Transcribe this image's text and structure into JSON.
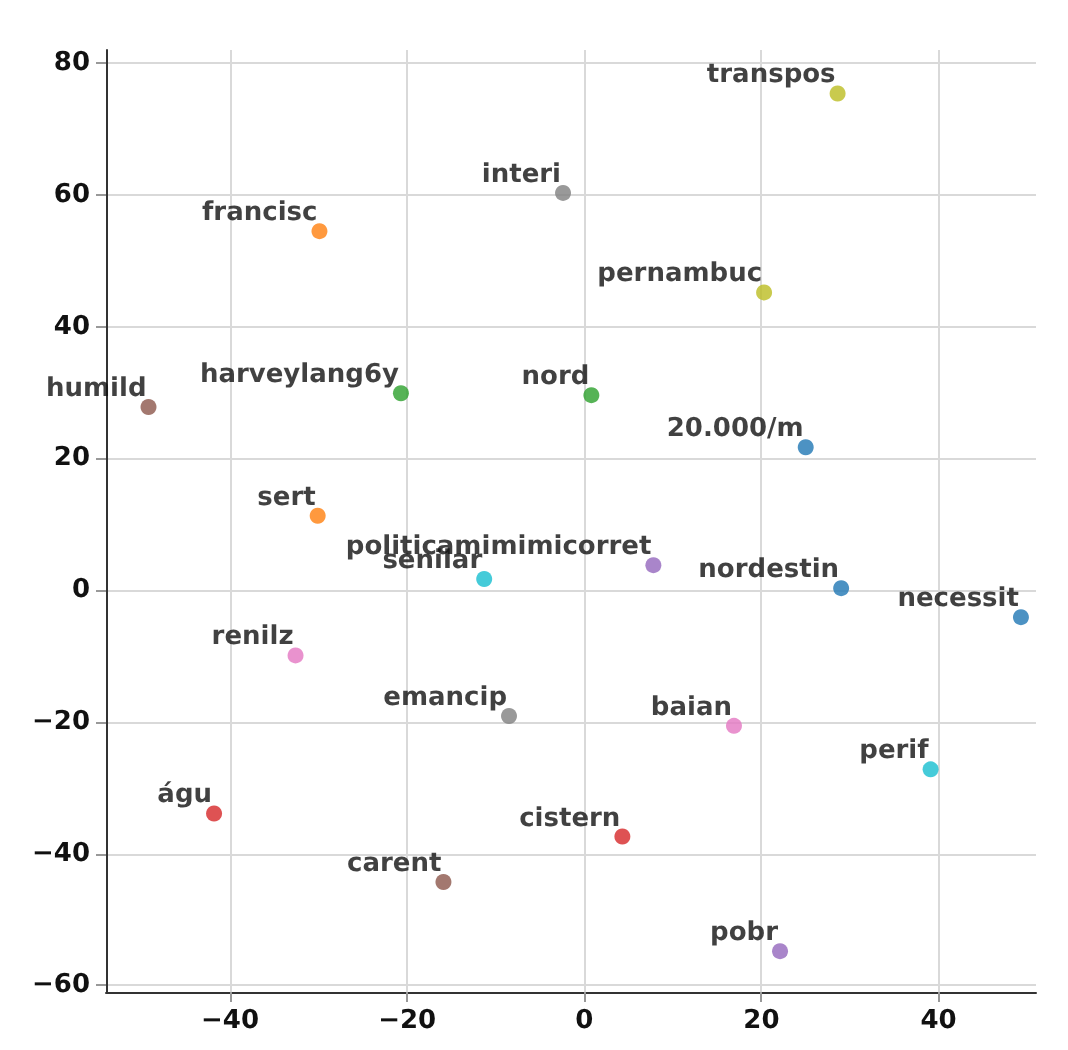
{
  "chart_data": {
    "type": "scatter",
    "x": [
      28.6,
      -2.4,
      -29.9,
      20.3,
      -49.2,
      -20.7,
      0.8,
      25.0,
      -30.1,
      7.8,
      -11.3,
      29.0,
      49.3,
      -32.6,
      -8.5,
      16.9,
      39.1,
      -41.8,
      4.3,
      -15.9,
      22.1
    ],
    "values": [
      75.4,
      60.3,
      54.5,
      45.2,
      27.8,
      29.9,
      29.6,
      21.7,
      11.3,
      3.8,
      1.7,
      0.3,
      -4.1,
      -9.9,
      -19.1,
      -20.6,
      -27.2,
      -33.9,
      -37.4,
      -44.3,
      -54.8
    ],
    "colors": [
      "#bcbd22",
      "#7f7f7f",
      "#ff7f0e",
      "#bcbd22",
      "#8c564b",
      "#2ca02c",
      "#2ca02c",
      "#1f77b4",
      "#ff7f0e",
      "#9467bd",
      "#17becf",
      "#1f77b4",
      "#1f77b4",
      "#e377c2",
      "#7f7f7f",
      "#e377c2",
      "#17becf",
      "#d62728",
      "#d62728",
      "#8c564b",
      "#9467bd"
    ],
    "annotations": [
      {
        "text": "transpos",
        "x": 28.6,
        "y": 75.4
      },
      {
        "text": "interi",
        "x": -2.4,
        "y": 60.3
      },
      {
        "text": "francisc",
        "x": -29.9,
        "y": 54.5
      },
      {
        "text": "pernambuc",
        "x": 20.3,
        "y": 45.2
      },
      {
        "text": "humild",
        "x": -49.2,
        "y": 27.8
      },
      {
        "text": "harveylang6y",
        "x": -20.7,
        "y": 29.9
      },
      {
        "text": "nord",
        "x": 0.8,
        "y": 29.6
      },
      {
        "text": "20.000/m",
        "x": 25.0,
        "y": 21.7
      },
      {
        "text": "sert",
        "x": -30.1,
        "y": 11.3
      },
      {
        "text": "politicamimimicorret",
        "x": 7.8,
        "y": 3.8
      },
      {
        "text": "senilar",
        "x": -11.3,
        "y": 1.7
      },
      {
        "text": "nordestin",
        "x": 29.0,
        "y": 0.3
      },
      {
        "text": "necessit",
        "x": 49.3,
        "y": -4.1
      },
      {
        "text": "renilz",
        "x": -32.6,
        "y": -9.9
      },
      {
        "text": "emancip",
        "x": -8.5,
        "y": -19.1
      },
      {
        "text": "baian",
        "x": 16.9,
        "y": -20.6
      },
      {
        "text": "perif",
        "x": 39.1,
        "y": -27.2
      },
      {
        "text": "águ",
        "x": -41.8,
        "y": -33.9
      },
      {
        "text": "cistern",
        "x": 4.3,
        "y": -37.4
      },
      {
        "text": "carent",
        "x": -15.9,
        "y": -44.3
      },
      {
        "text": "pobr",
        "x": 22.1,
        "y": -54.8
      }
    ],
    "xlim": [
      -54,
      51
    ],
    "ylim": [
      -61,
      82
    ],
    "xticks": [
      -40,
      -20,
      0,
      20,
      40
    ],
    "yticks": [
      -60,
      -40,
      -20,
      0,
      20,
      40,
      60,
      80
    ],
    "grid": true,
    "marker": "circle"
  }
}
